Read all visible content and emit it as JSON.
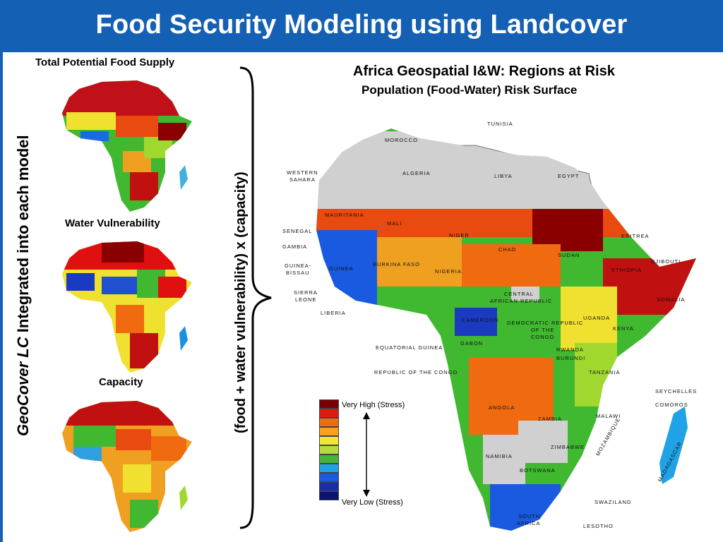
{
  "title": "Food Security Modeling using Landcover",
  "left_vertical": {
    "italic": "GeoCover LC",
    "rest": " Integrated into each model"
  },
  "formula": "(food + water vulnerability) x (capacity)",
  "panels": [
    {
      "label": "Total Potential Food Supply"
    },
    {
      "label": "Water Vulnerability"
    },
    {
      "label": "Capacity"
    }
  ],
  "main_map": {
    "title": "Africa Geospatial I&W: Regions at Risk",
    "subtitle": "Population (Food-Water) Risk Surface"
  },
  "legend": {
    "high_label": "Very High (Stress)",
    "low_label": "Very Low (Stress)",
    "colors": [
      "#7a0000",
      "#e11a10",
      "#f06a10",
      "#f6a21a",
      "#f4e33a",
      "#b7dc3a",
      "#45b43a",
      "#1fa2e6",
      "#1a5ae0",
      "#1a2ca8",
      "#0a1470"
    ]
  },
  "countries": {
    "tunisia": "TUNISIA",
    "morocco": "MOROCCO",
    "algeria": "ALGERIA",
    "libya": "LIBYA",
    "egypt": "EGYPT",
    "western_sahara_1": "WESTERN",
    "western_sahara_2": "SAHARA",
    "mauritania": "MAURITANIA",
    "mali": "MALI",
    "niger": "NIGER",
    "chad": "CHAD",
    "sudan": "SUDAN",
    "eritrea": "ERITREA",
    "djibouti": "DJIBOUTI",
    "ethiopia": "ETHIOPIA",
    "senegal": "SENEGAL",
    "gambia": "GAMBIA",
    "guinea_bissau_1": "GUINEA-",
    "guinea_bissau_2": "BISSAU",
    "guinea": "GUINEA",
    "burkina_faso": "BURKINA FASO",
    "nigeria": "NIGERIA",
    "sierra_leone_1": "SIERRA",
    "sierra_leone_2": "LEONE",
    "liberia": "LIBERIA",
    "car_1": "CENTRAL",
    "car_2": "AFRICAN REPUBLIC",
    "cameroon": "CAMEROON",
    "drc_1": "DEMOCRATIC REPUBLIC",
    "drc_2": "OF THE",
    "drc_3": "CONGO",
    "kenya": "KENYA",
    "uganda": "UGANDA",
    "somalia": "SOMALIA",
    "equatorial_guinea": "EQUATORIAL GUINEA",
    "gabon": "GABON",
    "rwanda": "RWANDA",
    "burundi": "BURUNDI",
    "republic_congo": "REPUBLIC OF THE CONGO",
    "tanzania": "TANZANIA",
    "seychelles": "SEYCHELLES",
    "comoros": "COMOROS",
    "angola": "ANGOLA",
    "zambia": "ZAMBIA",
    "malawi": "MALAWI",
    "mozambique": "MOZAMBIQUE",
    "madagascar": "MADAGASCAR",
    "zimbabwe": "ZIMBABWE",
    "namibia": "NAMIBIA",
    "botswana": "BOTSWANA",
    "swaziland": "SWAZILAND",
    "south_africa_1": "SOUTH",
    "south_africa_2": "AFRICA",
    "lesotho": "LESOTHO"
  }
}
